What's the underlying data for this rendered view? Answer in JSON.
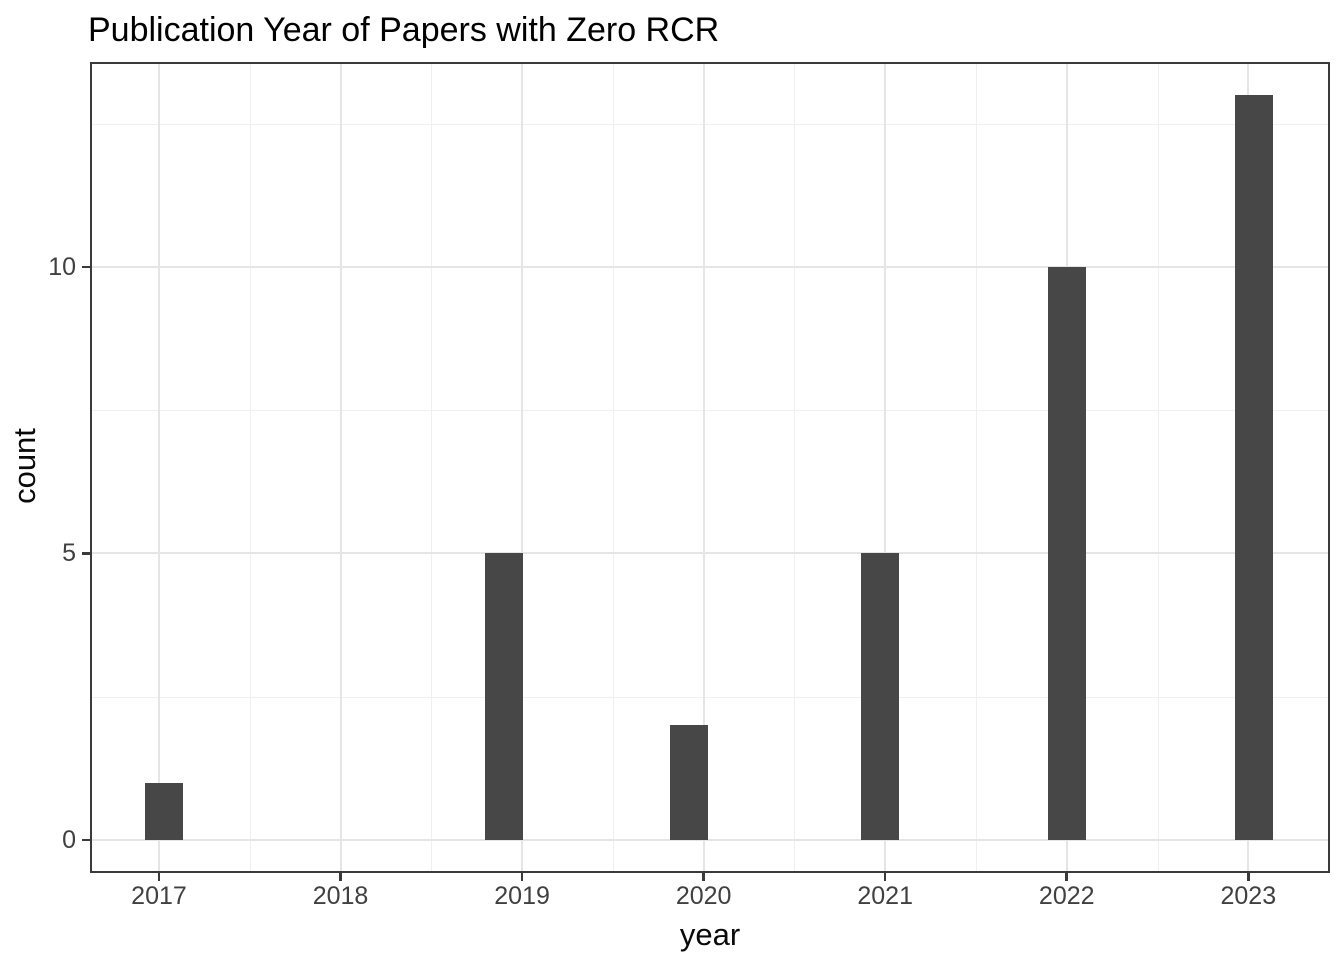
{
  "title": "Publication Year of Papers with Zero RCR",
  "chart_data": {
    "type": "bar",
    "title": "Publication Year of Papers with Zero RCR",
    "xlabel": "year",
    "ylabel": "count",
    "categories": [
      "2017",
      "2018",
      "2019",
      "2020",
      "2021",
      "2022",
      "2023"
    ],
    "values": [
      1,
      0,
      5,
      2,
      5,
      10,
      13
    ],
    "bars": [
      {
        "year": "2017",
        "count": 1,
        "x_center": 2017.03
      },
      {
        "year": "2018",
        "count": 0,
        "x_center": 2018.0
      },
      {
        "year": "2019",
        "count": 5,
        "x_center": 2018.9
      },
      {
        "year": "2020",
        "count": 2,
        "x_center": 2019.92
      },
      {
        "year": "2021",
        "count": 5,
        "x_center": 2020.97
      },
      {
        "year": "2022",
        "count": 10,
        "x_center": 2022.0
      },
      {
        "year": "2023",
        "count": 13,
        "x_center": 2023.03
      }
    ],
    "bar_width_years": 0.21,
    "xlim": [
      2016.62,
      2023.45
    ],
    "ylim": [
      -0.58,
      13.58
    ],
    "xticks": [
      2017,
      2018,
      2019,
      2020,
      2021,
      2022,
      2023
    ],
    "xtick_labels": [
      "2017",
      "2018",
      "2019",
      "2020",
      "2021",
      "2022",
      "2023"
    ],
    "yticks": [
      0,
      5,
      10
    ],
    "ytick_labels": [
      "0",
      "5",
      "10"
    ],
    "xticks_minor": [
      2017.5,
      2018.5,
      2019.5,
      2020.5,
      2021.5,
      2022.5
    ],
    "yticks_minor": [
      2.5,
      7.5,
      12.5
    ],
    "grid": "major+minor",
    "legend": false
  },
  "colors": {
    "bar_fill": "#474747",
    "grid_major": "#e5e5e5",
    "grid_minor": "#f0f0f0",
    "panel_border": "#3a3a3a",
    "tick_mark": "#3a3a3a",
    "tick_label": "#404040",
    "axis_title": "#0a0a0a",
    "title": "#000000",
    "background": "#ffffff"
  }
}
